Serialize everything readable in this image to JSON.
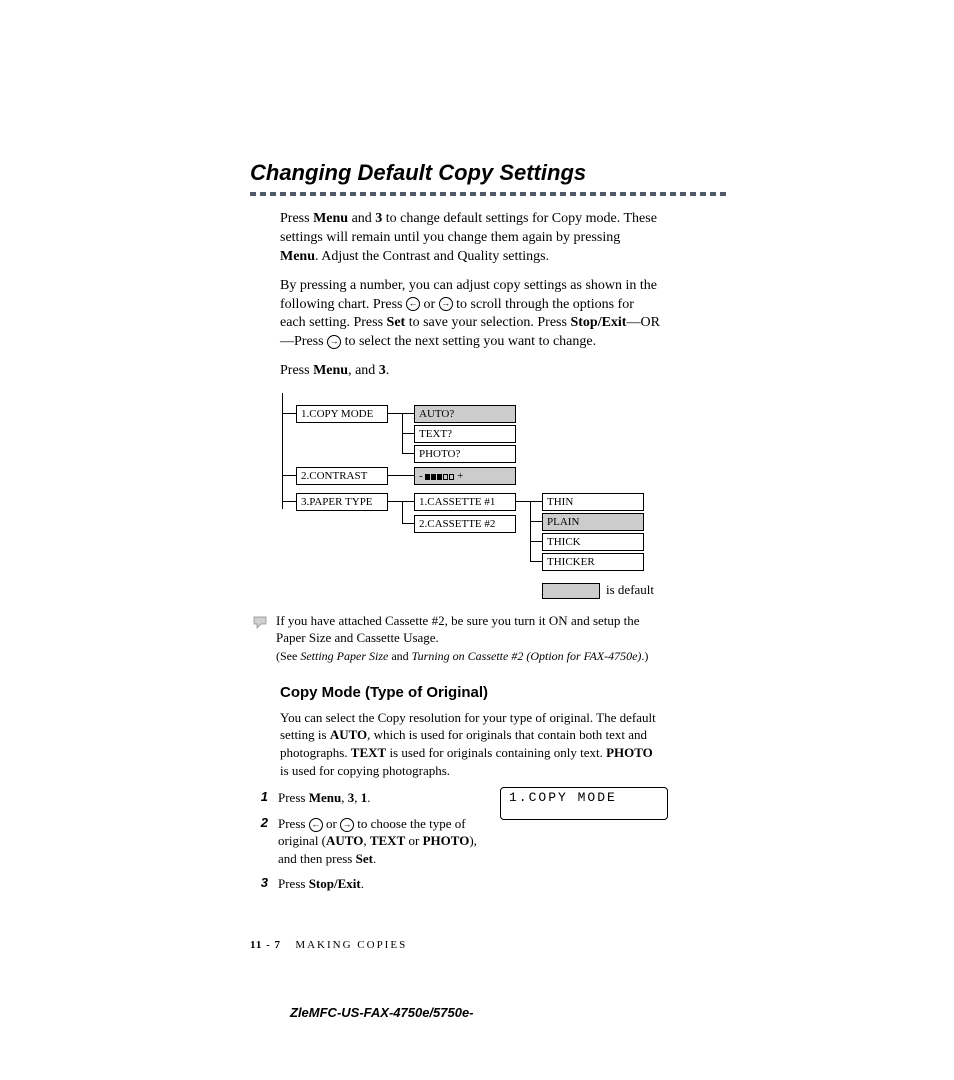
{
  "heading": "Changing Default Copy Settings",
  "dashed_rule": {
    "segments": 48,
    "color": "#4f5a66"
  },
  "paragraphs": {
    "p1_pre": "Press ",
    "p1_menu": "Menu",
    "p1_mid1": " and ",
    "p1_3": "3",
    "p1_mid2": " to change default settings for Copy mode. These settings will remain until you change them again by pressing ",
    "p1_menu2": "Menu",
    "p1_tail": ". Adjust the  Contrast and Quality settings.",
    "p2_pre": "By pressing a number, you can adjust copy settings as shown in the following chart. Press ",
    "p2_mid1": " or ",
    "p2_mid2": " to scroll through the options for each setting. Press ",
    "p2_set": "Set",
    "p2_mid3": " to save your selection. Press ",
    "p2_stop": "Stop/Exit",
    "p2_or": "—OR—",
    "p2_mid4": "Press ",
    "p2_mid5": " to select the next setting you want to change.",
    "p3_pre": "Press ",
    "p3_menu": "Menu",
    "p3_mid": ", and ",
    "p3_3": "3",
    "p3_tail": "."
  },
  "chart": {
    "level1": [
      {
        "label": "1.COPY MODE"
      },
      {
        "label": "2.CONTRAST"
      },
      {
        "label": "3.PAPER TYPE"
      }
    ],
    "copy_mode_opts": [
      {
        "label": "AUTO?",
        "shaded": true
      },
      {
        "label": "TEXT?",
        "shaded": false
      },
      {
        "label": "PHOTO?",
        "shaded": false
      }
    ],
    "cassettes": [
      {
        "label": "1.CASSETTE #1"
      },
      {
        "label": "2.CASSETTE #2"
      }
    ],
    "paper_opts": [
      {
        "label": "THIN",
        "shaded": false
      },
      {
        "label": "PLAIN",
        "shaded": true
      },
      {
        "label": "THICK",
        "shaded": false
      },
      {
        "label": "THICKER",
        "shaded": false
      }
    ],
    "contrast": {
      "minus": "-",
      "plus": "+",
      "filled": 3,
      "total": 5
    },
    "legend_text": "is default",
    "box_fill_default": "#cccccc",
    "box_fill_plain": "#ffffff",
    "box_border": "#000000",
    "font_size_pt": 11
  },
  "note": {
    "text": "If you have attached Cassette #2, be sure you turn it ON and setup the Paper Size and Cassette Usage.",
    "ref_pre": "(See ",
    "ref_i1": "Setting Paper Size",
    "ref_mid": " and ",
    "ref_i2": "Turning on Cassette #2 (Option for FAX-4750e)",
    "ref_tail": ".)"
  },
  "sub_heading": "Copy Mode (Type of Original)",
  "sub_para": {
    "pre": "You can select the Copy resolution for your type of original. The default setting is ",
    "auto": "AUTO",
    "mid1": ", which is used for originals that contain both text and photographs. ",
    "text": "TEXT",
    "mid2": " is used for originals containing only text. ",
    "photo": "PHOTO",
    "tail": " is used for copying photographs."
  },
  "steps": [
    {
      "num": "1",
      "pre": "Press ",
      "b1": "Menu",
      "m1": ", ",
      "b2": "3",
      "m2": ", ",
      "b3": "1",
      "tail": "."
    },
    {
      "num": "2",
      "pre": "Press ",
      "m1": " or ",
      "m2": " to choose the type of original (",
      "b1": "AUTO",
      "m3": ", ",
      "b2": "TEXT",
      "m4": " or ",
      "b3": "PHOTO",
      "m5": "), and then press ",
      "b4": "Set",
      "tail": "."
    },
    {
      "num": "3",
      "pre": "Press ",
      "b1": "Stop/Exit",
      "tail": "."
    }
  ],
  "lcd_display": "1.COPY MODE",
  "footer": {
    "page": "11 - 7",
    "section": "MAKING COPIES"
  },
  "model_line": "ZleMFC-US-FAX-4750e/5750e-"
}
